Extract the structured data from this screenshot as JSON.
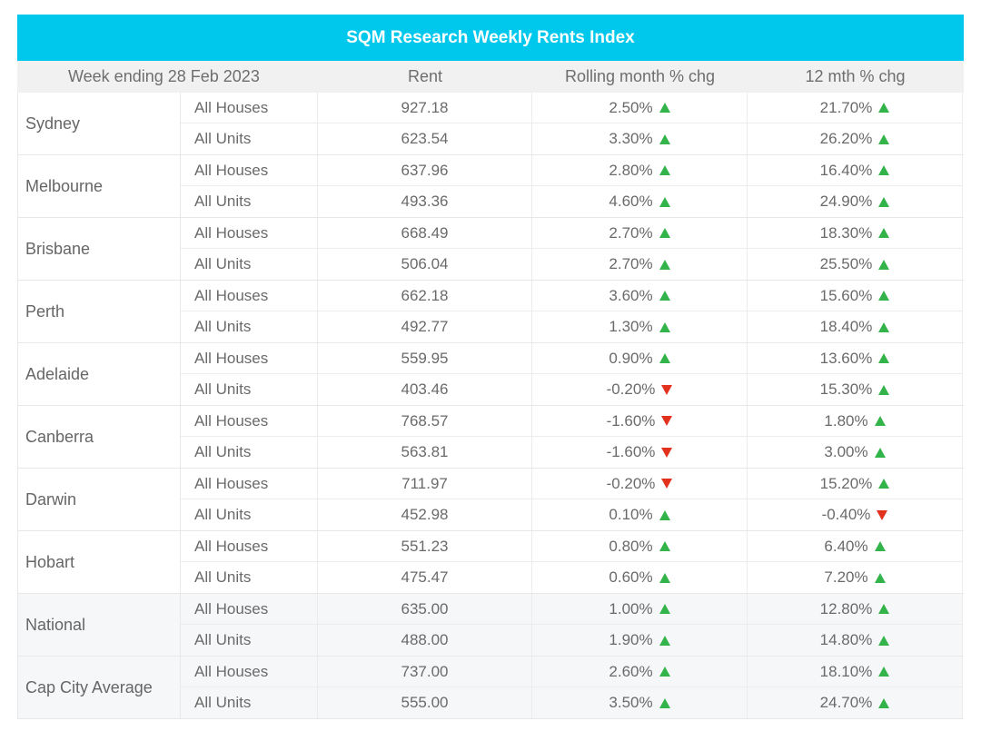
{
  "title": "SQM Research Weekly Rents Index",
  "headers": {
    "week": "Week ending 28 Feb 2023",
    "rent": "Rent",
    "rolling": "Rolling month % chg",
    "twelve": "12 mth % chg"
  },
  "colors": {
    "accent": "#00c8ec",
    "up": "#33b44a",
    "down": "#e2311d"
  },
  "rows": [
    {
      "city": "Sydney",
      "houses": {
        "type": "All Houses",
        "rent": "927.18",
        "rolling": "2.50%",
        "rolling_dir": "up",
        "twelve": "21.70%",
        "twelve_dir": "up"
      },
      "units": {
        "type": "All Units",
        "rent": "623.54",
        "rolling": "3.30%",
        "rolling_dir": "up",
        "twelve": "26.20%",
        "twelve_dir": "up"
      }
    },
    {
      "city": "Melbourne",
      "houses": {
        "type": "All Houses",
        "rent": "637.96",
        "rolling": "2.80%",
        "rolling_dir": "up",
        "twelve": "16.40%",
        "twelve_dir": "up"
      },
      "units": {
        "type": "All Units",
        "rent": "493.36",
        "rolling": "4.60%",
        "rolling_dir": "up",
        "twelve": "24.90%",
        "twelve_dir": "up"
      }
    },
    {
      "city": "Brisbane",
      "houses": {
        "type": "All Houses",
        "rent": "668.49",
        "rolling": "2.70%",
        "rolling_dir": "up",
        "twelve": "18.30%",
        "twelve_dir": "up"
      },
      "units": {
        "type": "All Units",
        "rent": "506.04",
        "rolling": "2.70%",
        "rolling_dir": "up",
        "twelve": "25.50%",
        "twelve_dir": "up"
      }
    },
    {
      "city": "Perth",
      "houses": {
        "type": "All Houses",
        "rent": "662.18",
        "rolling": "3.60%",
        "rolling_dir": "up",
        "twelve": "15.60%",
        "twelve_dir": "up"
      },
      "units": {
        "type": "All Units",
        "rent": "492.77",
        "rolling": "1.30%",
        "rolling_dir": "up",
        "twelve": "18.40%",
        "twelve_dir": "up"
      }
    },
    {
      "city": "Adelaide",
      "houses": {
        "type": "All Houses",
        "rent": "559.95",
        "rolling": "0.90%",
        "rolling_dir": "up",
        "twelve": "13.60%",
        "twelve_dir": "up"
      },
      "units": {
        "type": "All Units",
        "rent": "403.46",
        "rolling": "-0.20%",
        "rolling_dir": "down",
        "twelve": "15.30%",
        "twelve_dir": "up"
      }
    },
    {
      "city": "Canberra",
      "houses": {
        "type": "All Houses",
        "rent": "768.57",
        "rolling": "-1.60%",
        "rolling_dir": "down",
        "twelve": "1.80%",
        "twelve_dir": "up"
      },
      "units": {
        "type": "All Units",
        "rent": "563.81",
        "rolling": "-1.60%",
        "rolling_dir": "down",
        "twelve": "3.00%",
        "twelve_dir": "up"
      }
    },
    {
      "city": "Darwin",
      "houses": {
        "type": "All Houses",
        "rent": "711.97",
        "rolling": "-0.20%",
        "rolling_dir": "down",
        "twelve": "15.20%",
        "twelve_dir": "up"
      },
      "units": {
        "type": "All Units",
        "rent": "452.98",
        "rolling": "0.10%",
        "rolling_dir": "up",
        "twelve": "-0.40%",
        "twelve_dir": "down"
      }
    },
    {
      "city": "Hobart",
      "houses": {
        "type": "All Houses",
        "rent": "551.23",
        "rolling": "0.80%",
        "rolling_dir": "up",
        "twelve": "6.40%",
        "twelve_dir": "up"
      },
      "units": {
        "type": "All Units",
        "rent": "475.47",
        "rolling": "0.60%",
        "rolling_dir": "up",
        "twelve": "7.20%",
        "twelve_dir": "up"
      }
    },
    {
      "city": "National",
      "shaded": true,
      "houses": {
        "type": "All Houses",
        "rent": "635.00",
        "rolling": "1.00%",
        "rolling_dir": "up",
        "twelve": "12.80%",
        "twelve_dir": "up"
      },
      "units": {
        "type": "All Units",
        "rent": "488.00",
        "rolling": "1.90%",
        "rolling_dir": "up",
        "twelve": "14.80%",
        "twelve_dir": "up"
      }
    },
    {
      "city": "Cap City Average",
      "shaded": true,
      "houses": {
        "type": "All Houses",
        "rent": "737.00",
        "rolling": "2.60%",
        "rolling_dir": "up",
        "twelve": "18.10%",
        "twelve_dir": "up"
      },
      "units": {
        "type": "All Units",
        "rent": "555.00",
        "rolling": "3.50%",
        "rolling_dir": "up",
        "twelve": "24.70%",
        "twelve_dir": "up"
      }
    }
  ]
}
